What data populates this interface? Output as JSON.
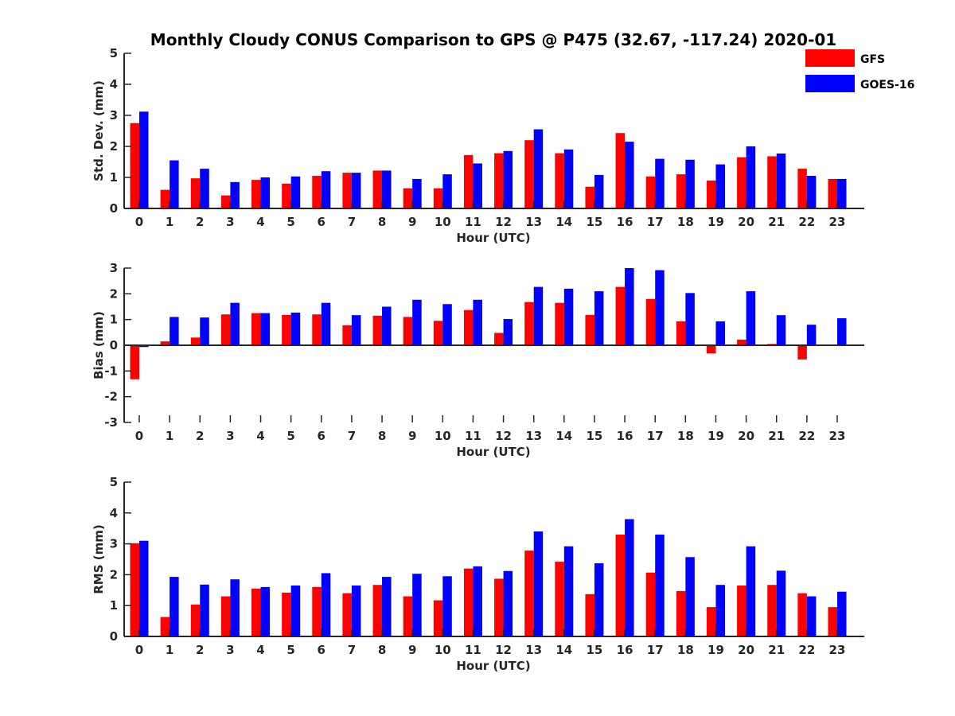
{
  "chart_data": {
    "type": "bar",
    "title": "Monthly Cloudy CONUS Comparison to GPS @ P475 (32.67, -117.24) 2020-01",
    "legend": {
      "placement": "top-right",
      "entries": [
        {
          "name": "GFS",
          "color": "#ff0000"
        },
        {
          "name": "GOES-16",
          "color": "#0000ff"
        }
      ]
    },
    "categories": [
      "0",
      "1",
      "2",
      "3",
      "4",
      "5",
      "6",
      "7",
      "8",
      "9",
      "10",
      "11",
      "12",
      "13",
      "14",
      "15",
      "16",
      "17",
      "18",
      "19",
      "20",
      "21",
      "22",
      "23"
    ],
    "panels": [
      {
        "ylabel": "Std. Dev. (mm)",
        "xlabel": "Hour (UTC)",
        "ylim": [
          0,
          5
        ],
        "yticks": [
          0,
          1,
          2,
          3,
          4,
          5
        ],
        "series": [
          {
            "name": "GFS",
            "color": "#ff0000",
            "values": [
              2.75,
              0.6,
              0.97,
              0.42,
              0.92,
              0.8,
              1.05,
              1.15,
              1.22,
              0.65,
              0.65,
              1.72,
              1.78,
              2.2,
              1.78,
              0.7,
              2.43,
              1.03,
              1.1,
              0.9,
              1.65,
              1.68,
              1.28,
              0.95
            ]
          },
          {
            "name": "GOES-16",
            "color": "#0000ff",
            "values": [
              3.12,
              1.55,
              1.28,
              0.85,
              1.0,
              1.03,
              1.2,
              1.15,
              1.22,
              0.95,
              1.1,
              1.45,
              1.85,
              2.55,
              1.9,
              1.08,
              2.15,
              1.6,
              1.57,
              1.42,
              2.0,
              1.77,
              1.05,
              0.95
            ]
          }
        ]
      },
      {
        "ylabel": "Bias (mm)",
        "xlabel": "Hour (UTC)",
        "ylim": [
          -3,
          3
        ],
        "yticks": [
          -3,
          -2,
          -1,
          0,
          1,
          2,
          3
        ],
        "series": [
          {
            "name": "GFS",
            "color": "#ff0000",
            "values": [
              -1.32,
              0.15,
              0.3,
              1.2,
              1.25,
              1.18,
              1.2,
              0.78,
              1.15,
              1.1,
              0.95,
              1.37,
              0.48,
              1.68,
              1.65,
              1.18,
              2.27,
              1.8,
              0.93,
              -0.32,
              0.22,
              0.05,
              -0.55,
              0.0
            ]
          },
          {
            "name": "GOES-16",
            "color": "#0000ff",
            "values": [
              -0.07,
              1.1,
              1.08,
              1.65,
              1.25,
              1.27,
              1.65,
              1.17,
              1.5,
              1.77,
              1.6,
              1.77,
              1.02,
              2.27,
              2.2,
              2.1,
              3.0,
              2.92,
              2.03,
              0.93,
              2.1,
              1.17,
              0.8,
              1.05
            ]
          }
        ]
      },
      {
        "ylabel": "RMS (mm)",
        "xlabel": "Hour (UTC)",
        "ylim": [
          0,
          5
        ],
        "yticks": [
          0,
          1,
          2,
          3,
          4,
          5
        ],
        "series": [
          {
            "name": "GFS",
            "color": "#ff0000",
            "values": [
              3.02,
              0.63,
              1.03,
              1.3,
              1.55,
              1.42,
              1.6,
              1.4,
              1.67,
              1.3,
              1.17,
              2.2,
              1.87,
              2.78,
              2.42,
              1.37,
              3.3,
              2.07,
              1.47,
              0.95,
              1.65,
              1.67,
              1.4,
              0.95
            ]
          },
          {
            "name": "GOES-16",
            "color": "#0000ff",
            "values": [
              3.1,
              1.93,
              1.68,
              1.85,
              1.6,
              1.65,
              2.05,
              1.65,
              1.93,
              2.03,
              1.95,
              2.27,
              2.12,
              3.4,
              2.92,
              2.37,
              3.8,
              3.3,
              2.57,
              1.67,
              2.92,
              2.13,
              1.3,
              1.45
            ]
          }
        ]
      }
    ]
  }
}
